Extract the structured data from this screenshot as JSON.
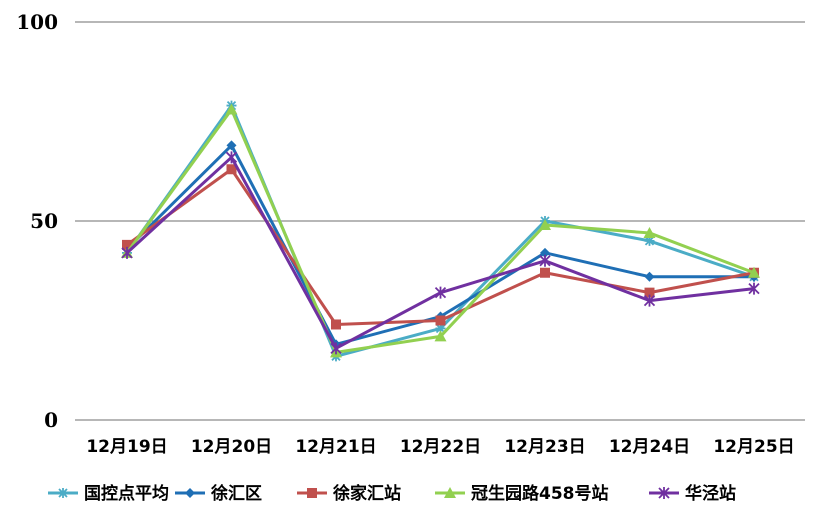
{
  "chart_data": {
    "type": "line",
    "categories": [
      "12月19日",
      "12月20日",
      "12月21日",
      "12月22日",
      "12月23日",
      "12月24日",
      "12月25日"
    ],
    "ylim": [
      0,
      100
    ],
    "yticks": [
      0,
      50,
      100
    ],
    "grid": true,
    "legend_position": "bottom",
    "series": [
      {
        "name": "国控点平均",
        "color": "#4bacc6",
        "marker": "star",
        "values": [
          42,
          79,
          16,
          23,
          50,
          45,
          36
        ]
      },
      {
        "name": "徐汇区",
        "color": "#1f6fb5",
        "marker": "diamond",
        "values": [
          43,
          69,
          19,
          26,
          42,
          36,
          36
        ]
      },
      {
        "name": "徐家汇站",
        "color": "#c0504d",
        "marker": "square",
        "values": [
          44,
          63,
          24,
          25,
          37,
          32,
          37
        ]
      },
      {
        "name": "冠生园路458号站",
        "color": "#92d050",
        "marker": "triangle",
        "values": [
          42,
          78,
          17,
          21,
          49,
          47,
          37
        ]
      },
      {
        "name": "华泾站",
        "color": "#7030a0",
        "marker": "x-star",
        "values": [
          42,
          66,
          18,
          32,
          40,
          30,
          33
        ]
      }
    ]
  }
}
